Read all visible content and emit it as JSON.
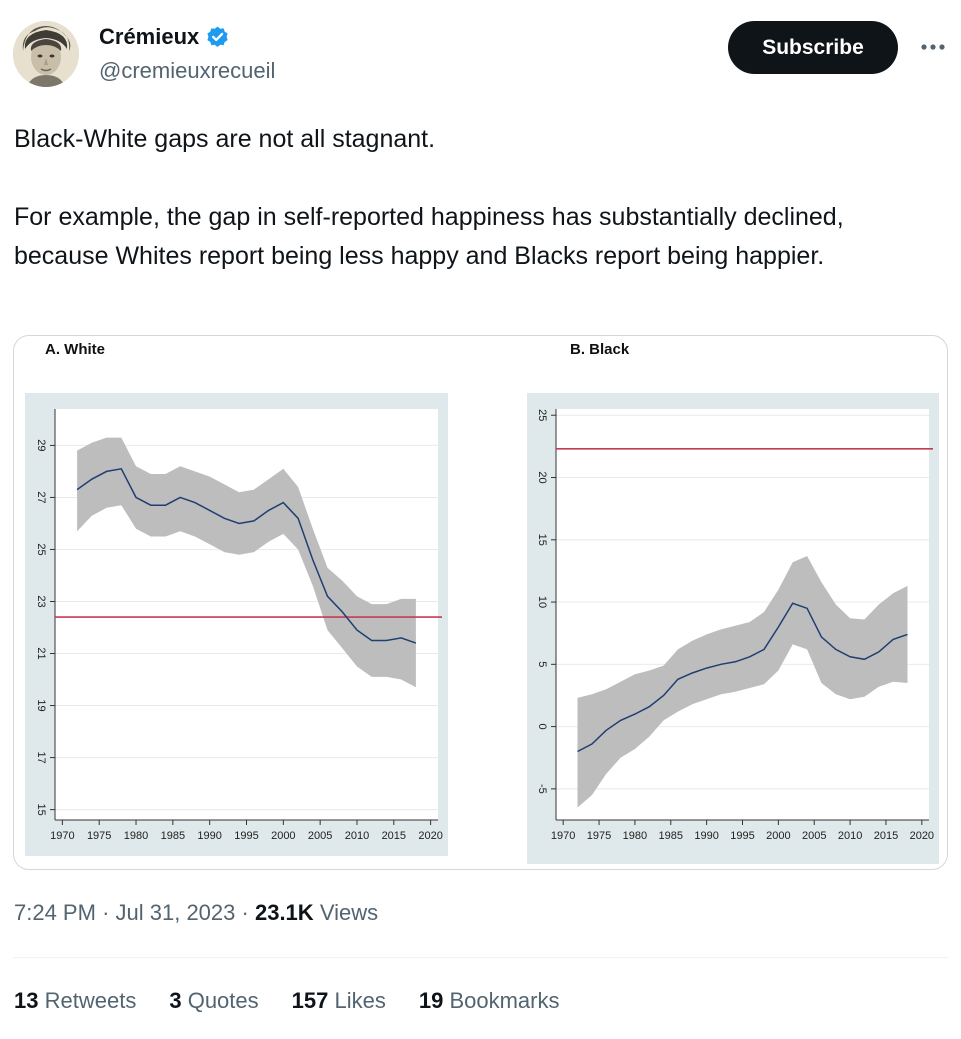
{
  "author": {
    "name": "Crémieux",
    "handle": "@cremieuxrecueil",
    "verified_color": "#1d9bf0"
  },
  "actions": {
    "subscribe_label": "Subscribe",
    "more_icon": "more-horizontal-icon"
  },
  "tweet": {
    "paragraphs": [
      "Black-White gaps are not all stagnant.",
      "For example, the gap in self-reported happiness has substantially declined, because Whites report being less happy and Blacks report being happier."
    ],
    "time": "7:24 PM",
    "date": "Jul 31, 2023",
    "views_count": "23.1K",
    "views_label": "Views"
  },
  "stats": [
    {
      "count": "13",
      "label": "Retweets"
    },
    {
      "count": "3",
      "label": "Quotes"
    },
    {
      "count": "157",
      "label": "Likes"
    },
    {
      "count": "19",
      "label": "Bookmarks"
    }
  ],
  "chart_data": [
    {
      "type": "line",
      "title": "A.  White",
      "x_ticks": [
        1970,
        1975,
        1980,
        1985,
        1990,
        1995,
        2000,
        2005,
        2010,
        2015,
        2020
      ],
      "y_ticks": [
        15,
        17,
        19,
        21,
        23,
        25,
        27,
        29
      ],
      "xlim": [
        1969,
        2021
      ],
      "ylim": [
        14.6,
        30.4
      ],
      "reference_line": 22.4,
      "line_color": "#1f3f73",
      "band_color": "#bdbdbd",
      "reference_color": "#c33c54",
      "series": [
        {
          "x": [
            1972,
            1974,
            1976,
            1978,
            1980,
            1982,
            1984,
            1986,
            1988,
            1990,
            1992,
            1994,
            1996,
            1998,
            2000,
            2002,
            2004,
            2006,
            2008,
            2010,
            2012,
            2014,
            2016,
            2018
          ],
          "y": [
            27.3,
            27.7,
            28.0,
            28.1,
            27.0,
            26.7,
            26.7,
            27.0,
            26.8,
            26.5,
            26.2,
            26.0,
            26.1,
            26.5,
            26.8,
            26.2,
            24.6,
            23.2,
            22.6,
            21.9,
            21.5,
            21.5,
            21.6,
            21.4
          ],
          "lower": [
            25.7,
            26.3,
            26.6,
            26.7,
            25.8,
            25.5,
            25.5,
            25.7,
            25.5,
            25.2,
            24.9,
            24.8,
            24.9,
            25.3,
            25.6,
            25.0,
            23.6,
            21.9,
            21.2,
            20.5,
            20.1,
            20.1,
            20.0,
            19.7
          ],
          "upper": [
            28.8,
            29.1,
            29.3,
            29.3,
            28.2,
            27.9,
            27.9,
            28.2,
            28.0,
            27.8,
            27.5,
            27.2,
            27.3,
            27.7,
            28.1,
            27.4,
            25.8,
            24.3,
            23.8,
            23.2,
            22.9,
            22.9,
            23.1,
            23.1
          ]
        }
      ]
    },
    {
      "type": "line",
      "title": "B. Black",
      "x_ticks": [
        1970,
        1975,
        1980,
        1985,
        1990,
        1995,
        2000,
        2005,
        2010,
        2015,
        2020
      ],
      "y_ticks": [
        -5,
        0,
        5,
        10,
        15,
        20,
        25
      ],
      "xlim": [
        1969,
        2021
      ],
      "ylim": [
        -7.5,
        25.5
      ],
      "reference_line": 22.3,
      "line_color": "#1f3f73",
      "band_color": "#bdbdbd",
      "reference_color": "#c33c54",
      "series": [
        {
          "x": [
            1972,
            1974,
            1976,
            1978,
            1980,
            1982,
            1984,
            1986,
            1988,
            1990,
            1992,
            1994,
            1996,
            1998,
            2000,
            2002,
            2004,
            2006,
            2008,
            2010,
            2012,
            2014,
            2016,
            2018
          ],
          "y": [
            -2.0,
            -1.4,
            -0.3,
            0.5,
            1.0,
            1.6,
            2.5,
            3.8,
            4.3,
            4.7,
            5.0,
            5.2,
            5.6,
            6.2,
            8.0,
            9.9,
            9.5,
            7.2,
            6.2,
            5.6,
            5.4,
            6.0,
            7.0,
            7.4
          ],
          "lower": [
            -6.5,
            -5.5,
            -3.8,
            -2.5,
            -1.8,
            -0.8,
            0.5,
            1.2,
            1.8,
            2.2,
            2.6,
            2.8,
            3.1,
            3.4,
            4.5,
            6.6,
            6.2,
            3.5,
            2.6,
            2.2,
            2.4,
            3.2,
            3.6,
            3.5
          ],
          "upper": [
            2.3,
            2.6,
            3.0,
            3.6,
            4.2,
            4.5,
            4.9,
            6.2,
            6.9,
            7.4,
            7.8,
            8.1,
            8.4,
            9.2,
            11.0,
            13.2,
            13.7,
            11.6,
            9.8,
            8.7,
            8.6,
            9.8,
            10.7,
            11.3
          ]
        }
      ]
    }
  ]
}
